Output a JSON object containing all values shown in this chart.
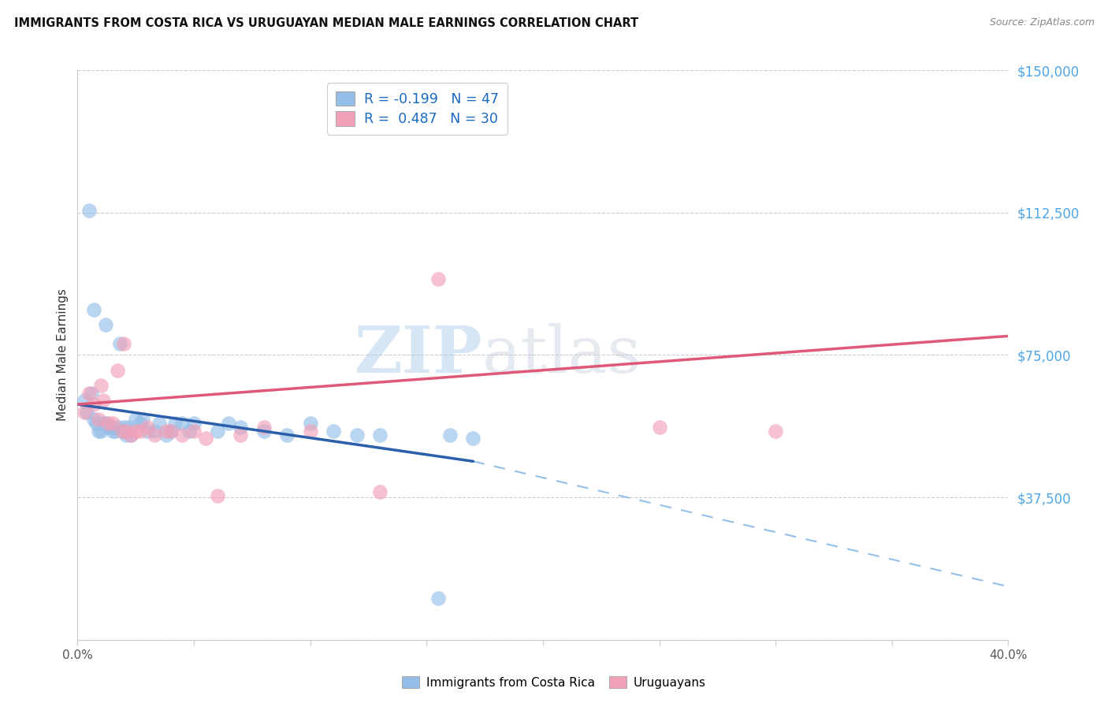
{
  "title": "IMMIGRANTS FROM COSTA RICA VS URUGUAYAN MEDIAN MALE EARNINGS CORRELATION CHART",
  "source": "Source: ZipAtlas.com",
  "ylabel": "Median Male Earnings",
  "x_min": 0.0,
  "x_max": 0.4,
  "y_min": 0,
  "y_max": 150000,
  "y_ticks": [
    0,
    37500,
    75000,
    112500,
    150000
  ],
  "y_tick_labels": [
    "",
    "$37,500",
    "$75,000",
    "$112,500",
    "$150,000"
  ],
  "x_ticks": [
    0.0,
    0.05,
    0.1,
    0.15,
    0.2,
    0.25,
    0.3,
    0.35,
    0.4
  ],
  "x_tick_labels": [
    "0.0%",
    "",
    "",
    "",
    "",
    "",
    "",
    "",
    "40.0%"
  ],
  "legend1_r": "-0.199",
  "legend1_n": "47",
  "legend2_r": "0.487",
  "legend2_n": "30",
  "color_blue": "#95bfe8",
  "color_pink": "#f2a0b8",
  "line_blue": "#2b5faa",
  "line_pink": "#e05878",
  "bottom_label1": "Immigrants from Costa Rica",
  "bottom_label2": "Uruguayans",
  "blue_x": [
    0.003,
    0.004,
    0.005,
    0.006,
    0.007,
    0.008,
    0.009,
    0.01,
    0.011,
    0.012,
    0.013,
    0.014,
    0.015,
    0.016,
    0.017,
    0.018,
    0.019,
    0.02,
    0.021,
    0.022,
    0.023,
    0.025,
    0.027,
    0.028,
    0.03,
    0.033,
    0.035,
    0.038,
    0.04,
    0.042,
    0.045,
    0.048,
    0.05,
    0.06,
    0.065,
    0.07,
    0.08,
    0.09,
    0.1,
    0.11,
    0.12,
    0.13,
    0.16,
    0.17,
    0.012,
    0.007,
    0.155
  ],
  "blue_y": [
    63000,
    60000,
    113000,
    65000,
    58000,
    57000,
    55000,
    55000,
    57000,
    57000,
    56000,
    56000,
    55000,
    55000,
    56000,
    78000,
    55000,
    56000,
    54000,
    56000,
    54000,
    58000,
    57000,
    58000,
    55000,
    55000,
    57000,
    54000,
    55000,
    57000,
    57000,
    55000,
    57000,
    55000,
    57000,
    56000,
    55000,
    54000,
    57000,
    55000,
    54000,
    54000,
    54000,
    53000,
    83000,
    87000,
    11000
  ],
  "pink_x": [
    0.003,
    0.005,
    0.007,
    0.009,
    0.011,
    0.013,
    0.015,
    0.017,
    0.019,
    0.021,
    0.023,
    0.025,
    0.027,
    0.03,
    0.033,
    0.038,
    0.045,
    0.05,
    0.055,
    0.07,
    0.08,
    0.1,
    0.13,
    0.155,
    0.25,
    0.3,
    0.01,
    0.02,
    0.04,
    0.06
  ],
  "pink_y": [
    60000,
    65000,
    62000,
    58000,
    63000,
    57000,
    57000,
    71000,
    55000,
    55000,
    54000,
    55000,
    55000,
    56000,
    54000,
    55000,
    54000,
    55000,
    53000,
    54000,
    56000,
    55000,
    39000,
    95000,
    56000,
    55000,
    67000,
    78000,
    55000,
    38000
  ],
  "blue_reg": [
    0.0,
    62000,
    0.17,
    47000
  ],
  "blue_dash": [
    0.17,
    47000,
    0.4,
    14000
  ],
  "pink_reg": [
    0.0,
    62000,
    0.4,
    80000
  ]
}
